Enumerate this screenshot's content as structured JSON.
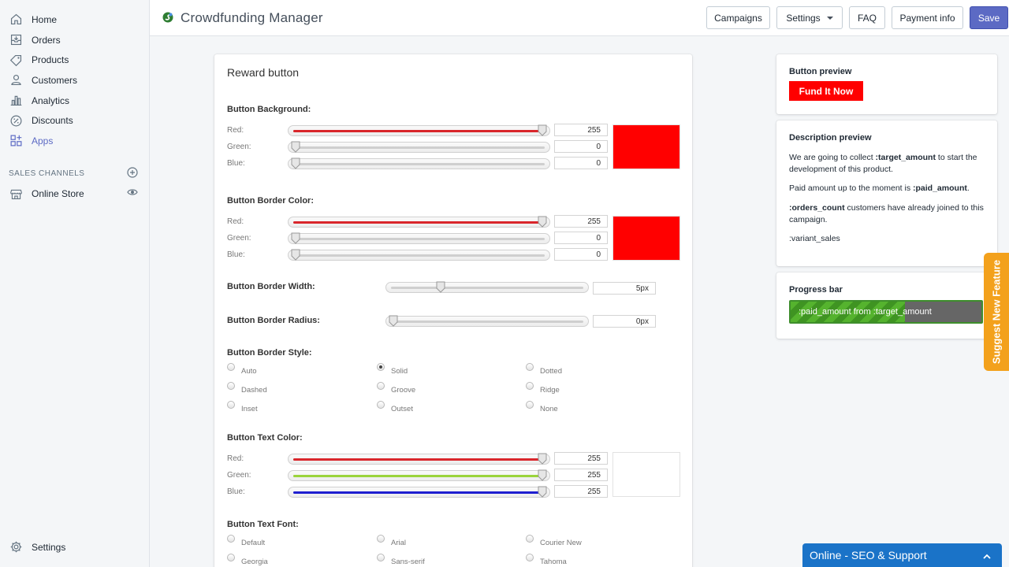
{
  "sidebar": {
    "items": [
      {
        "label": "Home"
      },
      {
        "label": "Orders"
      },
      {
        "label": "Products"
      },
      {
        "label": "Customers"
      },
      {
        "label": "Analytics"
      },
      {
        "label": "Discounts"
      },
      {
        "label": "Apps"
      }
    ],
    "sales_channels_heading": "SALES CHANNELS",
    "online_store": "Online Store",
    "settings": "Settings"
  },
  "header": {
    "title": "Crowdfunding Manager",
    "buttons": {
      "campaigns": "Campaigns",
      "settings": "Settings",
      "faq": "FAQ",
      "payment_info": "Payment info",
      "save": "Save"
    }
  },
  "editor": {
    "title": "Reward button",
    "background": {
      "label": "Button Background:",
      "red_label": "Red:",
      "green_label": "Green:",
      "blue_label": "Blue:",
      "red": "255",
      "green": "0",
      "blue": "0",
      "swatch_color": "#ff0000"
    },
    "border_color": {
      "label": "Button Border Color:",
      "red_label": "Red:",
      "green_label": "Green:",
      "blue_label": "Blue:",
      "red": "255",
      "green": "0",
      "blue": "0",
      "swatch_color": "#ff0000"
    },
    "border_width": {
      "label": "Button Border Width:",
      "value": "5px",
      "level": 0.25
    },
    "border_radius": {
      "label": "Button Border Radius:",
      "value": "0px",
      "level": 0
    },
    "border_style": {
      "label": "Button Border Style:",
      "options": [
        "Auto",
        "Solid",
        "Dotted",
        "Dashed",
        "Groove",
        "Ridge",
        "Inset",
        "Outset",
        "None"
      ],
      "selected": "Solid"
    },
    "text_color": {
      "label": "Button Text Color:",
      "red_label": "Red:",
      "green_label": "Green:",
      "blue_label": "Blue:",
      "red": "255",
      "green": "255",
      "blue": "255",
      "swatch_color": "#ffffff"
    },
    "text_font": {
      "label": "Button Text Font:",
      "options": [
        "Default",
        "Arial",
        "Courier New",
        "Georgia",
        "Sans-serif",
        "Tahoma"
      ]
    }
  },
  "button_preview": {
    "title": "Button preview",
    "label": "Fund It Now"
  },
  "description_preview": {
    "title": "Description preview",
    "p1_pre": "We are going to collect ",
    "p1_bold": ":target_amount",
    "p1_post": " to start the development of this product.",
    "p2_pre": "Paid amount up to the moment is ",
    "p2_bold": ":paid_amount",
    "p2_post": ".",
    "p3_bold": ":orders_count",
    "p3_post": " customers have already joined to this campaign.",
    "p4": ":variant_sales"
  },
  "progress_preview": {
    "title": "Progress bar",
    "text": ":paid_amount from :target_amount",
    "fill_fraction": 0.6
  },
  "suggest_tab": "Suggest New Feature",
  "support_chat": "Online - SEO & Support",
  "colors": {
    "accent": "#5c6ac4",
    "suggest": "#f3a11c",
    "support": "#1a73c8",
    "progress_green": "#55b32e"
  }
}
